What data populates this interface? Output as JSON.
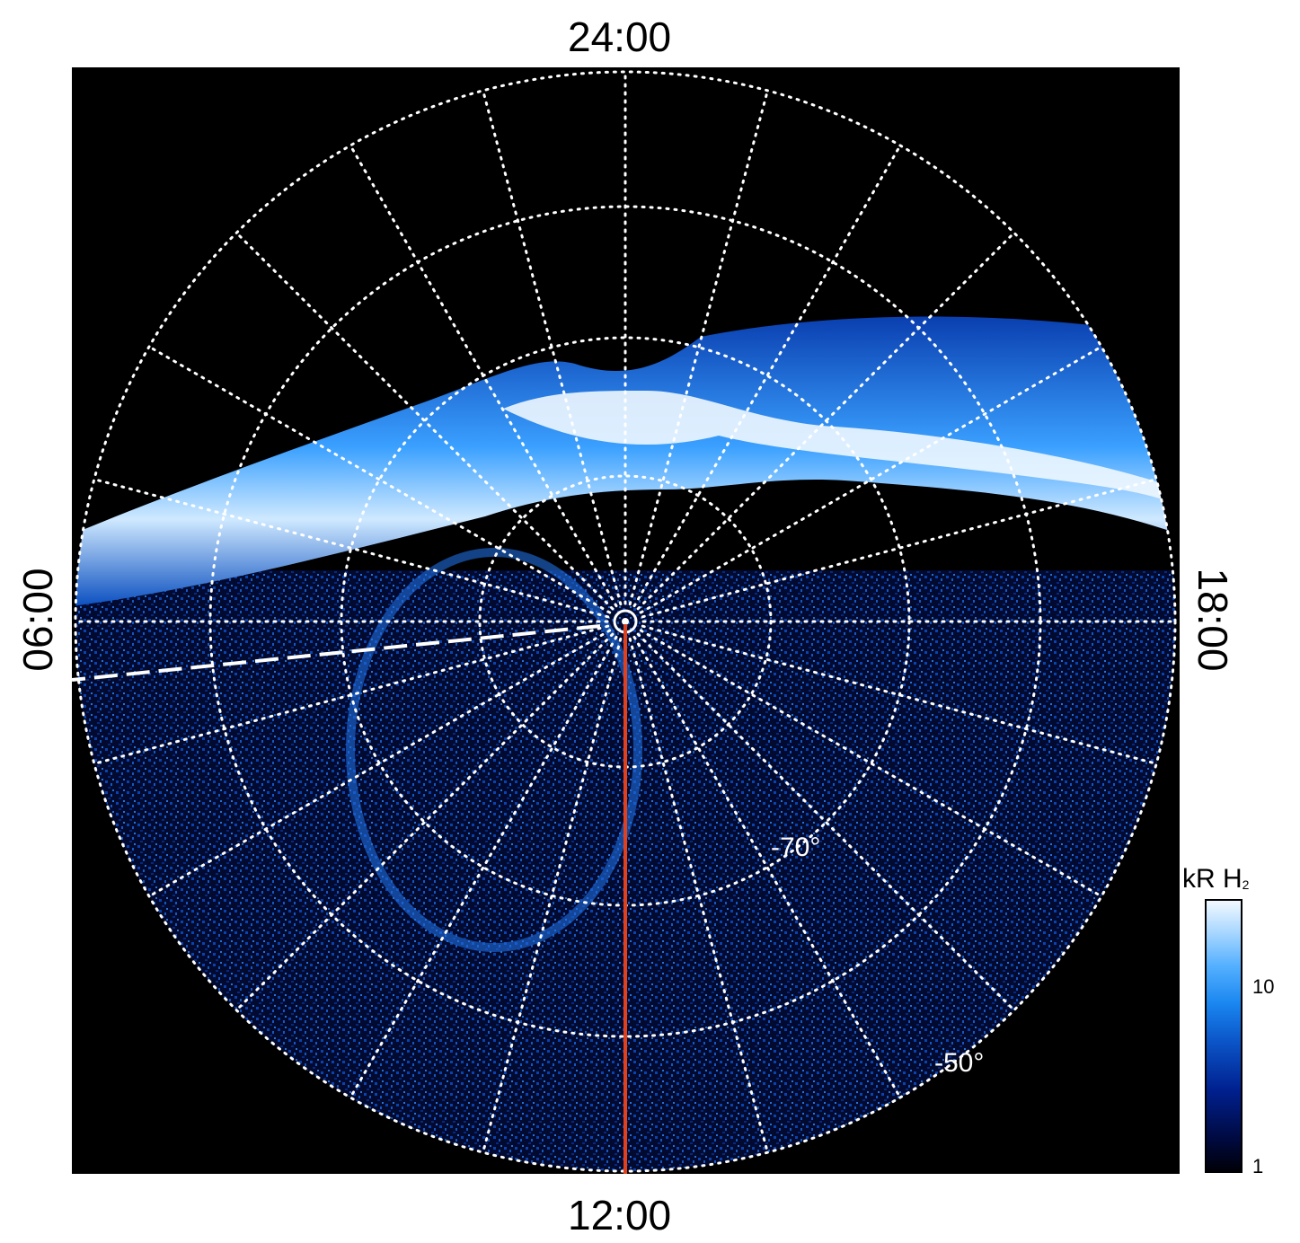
{
  "time_labels": {
    "top": "24:00",
    "bottom": "12:00",
    "left": "06:00",
    "right": "18:00"
  },
  "latitude_labels": {
    "inner": "-70°",
    "outer": "-50°"
  },
  "colorbar": {
    "title": "kR H",
    "title_subscript": "2",
    "ticks": [
      "10",
      "1"
    ],
    "scale": "log",
    "colors": [
      "#000008",
      "#00208f",
      "#1a86f0",
      "#a6d6ff",
      "#f2f9ff"
    ]
  },
  "image": {
    "description_colors": {
      "background": "#000000",
      "grid": "#ffffff",
      "meridian": "#e0401c"
    }
  }
}
